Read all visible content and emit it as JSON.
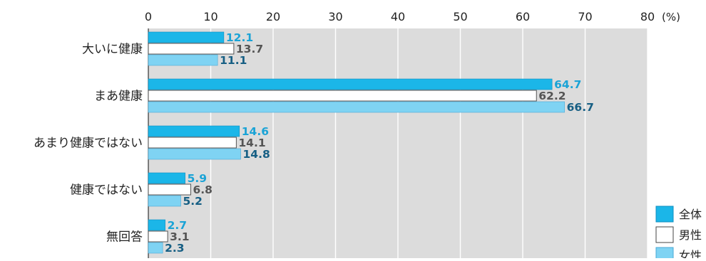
{
  "chart_data": {
    "type": "bar",
    "orientation": "horizontal",
    "unit": "(%)",
    "xlim": [
      0,
      80
    ],
    "xticks": [
      0,
      10,
      20,
      30,
      40,
      50,
      60,
      70,
      80
    ],
    "grid": true,
    "legend_position": "bottom-right",
    "categories": [
      "大いに健康",
      "まあ健康",
      "あまり健康ではない",
      "健康ではない",
      "無回答"
    ],
    "series": [
      {
        "name": "全体",
        "color": "#1bb6e8",
        "label_color": "#1aa3d6",
        "values": [
          12.1,
          64.7,
          14.6,
          5.9,
          2.7
        ]
      },
      {
        "name": "男性",
        "color": "#ffffff",
        "label_color": "#555555",
        "values": [
          13.7,
          62.2,
          14.1,
          6.8,
          3.1
        ]
      },
      {
        "name": "女性",
        "color": "#7fd3f3",
        "label_color": "#175f84",
        "values": [
          11.1,
          66.7,
          14.8,
          5.2,
          2.3
        ]
      }
    ],
    "plot_background": "#dcdcdc"
  }
}
